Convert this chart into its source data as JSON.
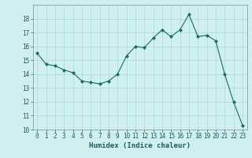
{
  "x": [
    0,
    1,
    2,
    3,
    4,
    5,
    6,
    7,
    8,
    9,
    10,
    11,
    12,
    13,
    14,
    15,
    16,
    17,
    18,
    19,
    20,
    21,
    22,
    23
  ],
  "y": [
    15.5,
    14.7,
    14.6,
    14.3,
    14.1,
    13.5,
    13.4,
    13.3,
    13.5,
    14.0,
    15.3,
    16.0,
    15.9,
    16.6,
    17.2,
    16.7,
    17.2,
    18.3,
    16.7,
    16.8,
    16.4,
    14.0,
    12.0,
    10.3
  ],
  "line_color": "#1a6b5a",
  "marker": "D",
  "marker_size": 2.0,
  "bg_color": "#d0f0f0",
  "grid_color": "#a8d8d8",
  "xlabel": "Humidex (Indice chaleur)",
  "ylim": [
    10,
    19
  ],
  "xlim": [
    -0.5,
    23.5
  ],
  "yticks": [
    10,
    11,
    12,
    13,
    14,
    15,
    16,
    17,
    18
  ],
  "xticks": [
    0,
    1,
    2,
    3,
    4,
    5,
    6,
    7,
    8,
    9,
    10,
    11,
    12,
    13,
    14,
    15,
    16,
    17,
    18,
    19,
    20,
    21,
    22,
    23
  ],
  "xlabel_fontsize": 6.5,
  "tick_fontsize": 5.5,
  "line_width": 0.8
}
